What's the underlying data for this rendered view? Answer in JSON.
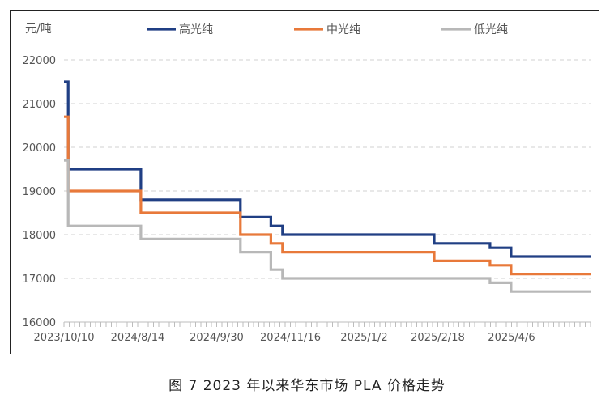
{
  "caption": "图 7  2023 年以来华东市场 PLA 价格走势",
  "chart_data": {
    "type": "line",
    "step": true,
    "unit_label": "元/吨",
    "ylim": [
      16000,
      22000
    ],
    "y_ticks": [
      16000,
      17000,
      18000,
      19000,
      20000,
      21000,
      22000
    ],
    "x_tick_labels": [
      "2023/10/10",
      "2024/8/14",
      "2024/9/30",
      "2024/11/16",
      "2025/1/2",
      "2025/2/18",
      "2025/4/6"
    ],
    "x_index_range": [
      0,
      100
    ],
    "x_tick_positions": [
      0,
      14,
      29,
      43,
      57,
      71,
      85
    ],
    "grid": true,
    "legend_position": "top",
    "series": [
      {
        "name": "高光纯",
        "color": "#203f84",
        "points": [
          [
            0,
            21500
          ],
          [
            0.8,
            21500
          ],
          [
            0.8,
            19500
          ],
          [
            14.6,
            19500
          ],
          [
            14.6,
            18800
          ],
          [
            33.5,
            18800
          ],
          [
            33.5,
            18400
          ],
          [
            39.3,
            18400
          ],
          [
            39.3,
            18200
          ],
          [
            41.5,
            18200
          ],
          [
            41.5,
            18000
          ],
          [
            70.3,
            18000
          ],
          [
            70.3,
            17800
          ],
          [
            80.9,
            17800
          ],
          [
            80.9,
            17700
          ],
          [
            84.9,
            17700
          ],
          [
            84.9,
            17500
          ],
          [
            100,
            17500
          ]
        ]
      },
      {
        "name": "中光纯",
        "color": "#e8793a",
        "points": [
          [
            0,
            20700
          ],
          [
            0.8,
            20700
          ],
          [
            0.8,
            19000
          ],
          [
            14.6,
            19000
          ],
          [
            14.6,
            18500
          ],
          [
            33.5,
            18500
          ],
          [
            33.5,
            18000
          ],
          [
            39.3,
            18000
          ],
          [
            39.3,
            17800
          ],
          [
            41.5,
            17800
          ],
          [
            41.5,
            17600
          ],
          [
            70.3,
            17600
          ],
          [
            70.3,
            17400
          ],
          [
            80.9,
            17400
          ],
          [
            80.9,
            17300
          ],
          [
            84.9,
            17300
          ],
          [
            84.9,
            17100
          ],
          [
            100,
            17100
          ]
        ]
      },
      {
        "name": "低光纯",
        "color": "#b8b8b8",
        "points": [
          [
            0,
            19700
          ],
          [
            0.8,
            19700
          ],
          [
            0.8,
            18200
          ],
          [
            14.6,
            18200
          ],
          [
            14.6,
            17900
          ],
          [
            33.5,
            17900
          ],
          [
            33.5,
            17600
          ],
          [
            39.3,
            17600
          ],
          [
            39.3,
            17200
          ],
          [
            41.5,
            17200
          ],
          [
            41.5,
            17000
          ],
          [
            80.9,
            17000
          ],
          [
            80.9,
            16900
          ],
          [
            84.9,
            16900
          ],
          [
            84.9,
            16700
          ],
          [
            100,
            16700
          ]
        ]
      }
    ]
  }
}
